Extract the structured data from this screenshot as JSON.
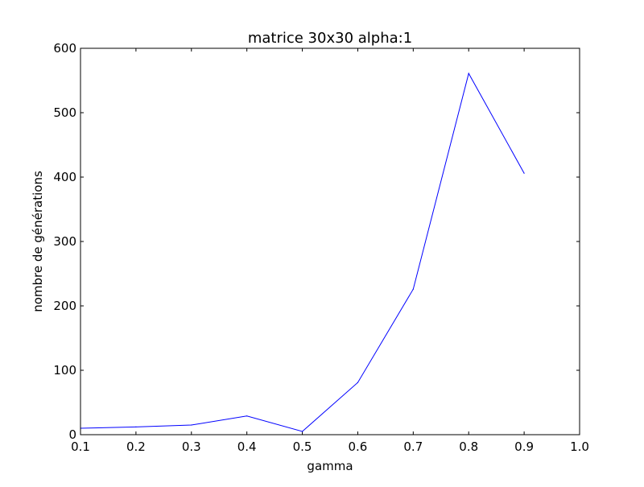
{
  "chart_data": {
    "type": "line",
    "title": "matrice 30x30 alpha:1",
    "xlabel": "gamma",
    "ylabel": "nombre de générations",
    "xlim": [
      0.1,
      1.0
    ],
    "ylim": [
      0,
      600
    ],
    "xticks": [
      "0.1",
      "0.2",
      "0.3",
      "0.4",
      "0.5",
      "0.6",
      "0.7",
      "0.8",
      "0.9",
      "1.0"
    ],
    "yticks": [
      "0",
      "100",
      "200",
      "300",
      "400",
      "500",
      "600"
    ],
    "grid": false,
    "series": [
      {
        "color": "#0000ff",
        "x": [
          0.1,
          0.2,
          0.3,
          0.4,
          0.5,
          0.6,
          0.7,
          0.8,
          0.9
        ],
        "y": [
          10,
          12,
          15,
          29,
          5,
          81,
          226,
          561,
          406
        ]
      }
    ]
  }
}
